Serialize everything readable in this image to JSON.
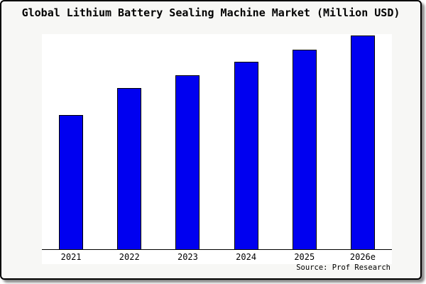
{
  "chart_data": {
    "type": "bar",
    "title": "Global Lithium Battery Sealing Machine Market (Million USD)",
    "categories": [
      "2021",
      "2022",
      "2023",
      "2024",
      "2025",
      "2026e"
    ],
    "values_relative": [
      62.8,
      75.4,
      81.4,
      87.7,
      93.5,
      100
    ],
    "unit": "Million USD",
    "xlabel": "",
    "ylabel": "",
    "y_axis_labels_visible": false,
    "grid": false,
    "legend": "none",
    "bar_color": "#0000f0",
    "bar_border_color": "#000000",
    "plot_background": "#ffffff",
    "card_background": "#f7f7f5",
    "source": "Source: Prof Research"
  }
}
